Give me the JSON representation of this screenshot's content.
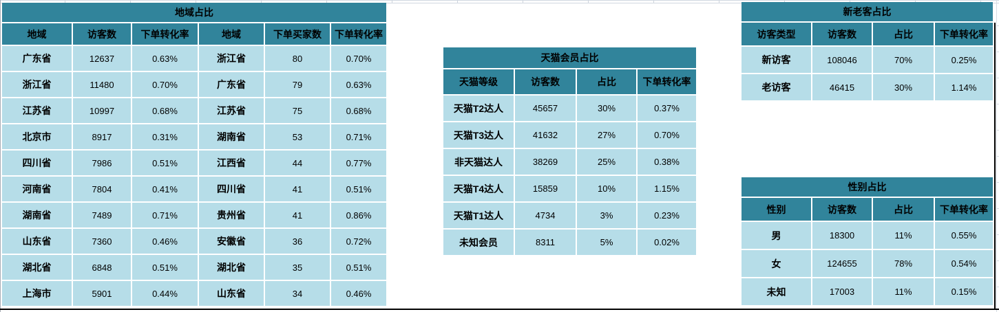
{
  "colors": {
    "header_bg": "#31849B",
    "row_bg": "#B6DDE8",
    "gridline": "#D0D7E0",
    "border": "#000000"
  },
  "tables": {
    "region": {
      "title": "地域占比",
      "headers": [
        "地域",
        "访客数",
        "下单转化率",
        "地域",
        "下单买家数",
        "下单转化率"
      ],
      "rows": [
        [
          "广东省",
          "12637",
          "0.63%",
          "浙江省",
          "80",
          "0.70%"
        ],
        [
          "浙江省",
          "11480",
          "0.70%",
          "广东省",
          "79",
          "0.63%"
        ],
        [
          "江苏省",
          "10997",
          "0.68%",
          "江苏省",
          "75",
          "0.68%"
        ],
        [
          "北京市",
          "8917",
          "0.31%",
          "湖南省",
          "53",
          "0.71%"
        ],
        [
          "四川省",
          "7986",
          "0.51%",
          "江西省",
          "44",
          "0.77%"
        ],
        [
          "河南省",
          "7804",
          "0.41%",
          "四川省",
          "41",
          "0.51%"
        ],
        [
          "湖南省",
          "7489",
          "0.71%",
          "贵州省",
          "41",
          "0.86%"
        ],
        [
          "山东省",
          "7360",
          "0.46%",
          "安徽省",
          "36",
          "0.72%"
        ],
        [
          "湖北省",
          "6848",
          "0.51%",
          "湖北省",
          "35",
          "0.51%"
        ],
        [
          "上海市",
          "5901",
          "0.44%",
          "山东省",
          "34",
          "0.46%"
        ]
      ]
    },
    "tmall": {
      "title": "天猫会员占比",
      "headers": [
        "天猫等级",
        "访客数",
        "占比",
        "下单转化率"
      ],
      "rows": [
        [
          "天猫T2达人",
          "45657",
          "30%",
          "0.37%"
        ],
        [
          "天猫T3达人",
          "41632",
          "27%",
          "0.70%"
        ],
        [
          "非天猫达人",
          "38269",
          "25%",
          "0.38%"
        ],
        [
          "天猫T4达人",
          "15859",
          "10%",
          "1.15%"
        ],
        [
          "天猫T1达人",
          "4734",
          "3%",
          "0.23%"
        ],
        [
          "未知会员",
          "8311",
          "5%",
          "0.02%"
        ]
      ]
    },
    "visitor": {
      "title": "新老客占比",
      "headers": [
        "访客类型",
        "访客数",
        "占比",
        "下单转化率"
      ],
      "rows": [
        [
          "新访客",
          "108046",
          "70%",
          "0.25%"
        ],
        [
          "老访客",
          "46415",
          "30%",
          "1.14%"
        ]
      ]
    },
    "gender": {
      "title": "性别占比",
      "headers": [
        "性别",
        "访客数",
        "占比",
        "下单转化率"
      ],
      "rows": [
        [
          "男",
          "18300",
          "11%",
          "0.55%"
        ],
        [
          "女",
          "124655",
          "78%",
          "0.54%"
        ],
        [
          "未知",
          "17003",
          "11%",
          "0.15%"
        ]
      ]
    }
  }
}
